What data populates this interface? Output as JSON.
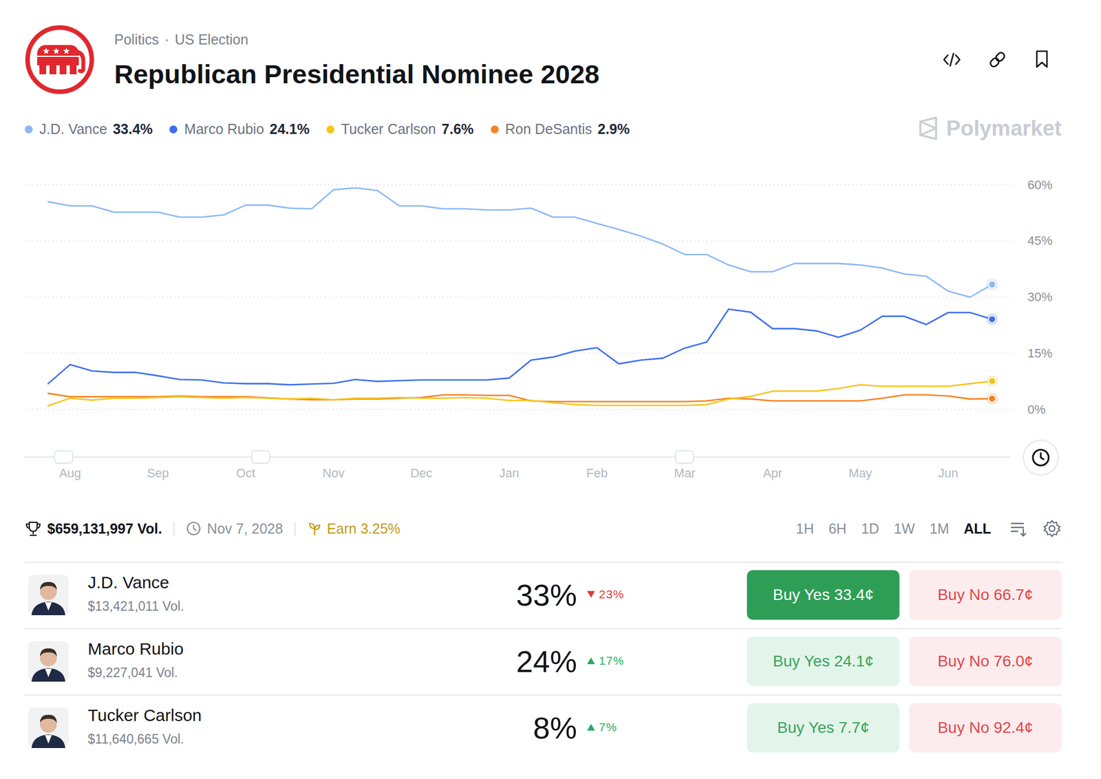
{
  "header": {
    "breadcrumb": [
      "Politics",
      "US Election"
    ],
    "breadcrumb_separator": "·",
    "title": "Republican Presidential Nominee 2028",
    "watermark": "Polymarket"
  },
  "chart_data": {
    "type": "line",
    "categories": [
      null,
      "Aug",
      null,
      null,
      null,
      "Sep",
      null,
      null,
      null,
      "Oct",
      null,
      null,
      null,
      "Nov",
      null,
      null,
      null,
      "Dec",
      null,
      null,
      null,
      "Jan",
      null,
      null,
      null,
      "Feb",
      null,
      null,
      null,
      "Mar",
      null,
      null,
      null,
      "Apr",
      null,
      null,
      null,
      "May",
      null,
      null,
      null,
      "Jun",
      null,
      null
    ],
    "series": [
      {
        "name": "J.D. Vance",
        "color": "#8cb8f5",
        "latest_label": "33.4%",
        "values": [
          55.5,
          54.4,
          54.4,
          52.7,
          52.7,
          52.7,
          51.4,
          51.4,
          52.0,
          54.6,
          54.6,
          53.8,
          53.6,
          58.7,
          59.2,
          58.5,
          54.4,
          54.4,
          53.6,
          53.6,
          53.3,
          53.3,
          53.8,
          51.4,
          51.4,
          49.7,
          48.1,
          46.3,
          44.2,
          41.4,
          41.4,
          38.6,
          36.8,
          36.8,
          39.0,
          39.0,
          39.0,
          38.6,
          37.8,
          36.2,
          35.6,
          31.6,
          30.0,
          33.4
        ]
      },
      {
        "name": "Marco Rubio",
        "color": "#3d6fef",
        "latest_label": "24.1%",
        "values": [
          6.9,
          12.0,
          10.3,
          9.9,
          9.9,
          9.0,
          8.0,
          7.9,
          7.1,
          6.9,
          6.9,
          6.6,
          6.8,
          7.0,
          8.0,
          7.5,
          7.7,
          7.9,
          7.9,
          7.9,
          7.9,
          8.4,
          13.2,
          14.0,
          15.6,
          16.5,
          12.2,
          13.2,
          13.7,
          16.4,
          18.0,
          26.8,
          26.0,
          21.6,
          21.6,
          21.0,
          19.3,
          21.2,
          24.9,
          24.9,
          22.7,
          25.9,
          25.9,
          24.1
        ]
      },
      {
        "name": "Tucker Carlson",
        "color": "#f7c41a",
        "latest_label": "7.6%",
        "values": [
          1.0,
          3.0,
          2.5,
          3.0,
          3.0,
          3.2,
          3.4,
          3.2,
          3.0,
          3.2,
          3.0,
          2.8,
          3.0,
          2.6,
          3.0,
          3.0,
          3.2,
          3.0,
          3.0,
          3.2,
          3.0,
          2.4,
          2.4,
          1.8,
          1.3,
          1.1,
          1.1,
          1.1,
          1.1,
          1.1,
          1.3,
          2.8,
          3.5,
          4.9,
          4.9,
          4.9,
          5.6,
          6.6,
          6.2,
          6.2,
          6.2,
          6.2,
          6.9,
          7.6
        ]
      },
      {
        "name": "Ron DeSantis",
        "color": "#f58220",
        "latest_label": "2.9%",
        "values": [
          4.3,
          3.4,
          3.4,
          3.4,
          3.4,
          3.4,
          3.6,
          3.4,
          3.4,
          3.4,
          3.1,
          2.8,
          2.6,
          2.6,
          2.8,
          2.8,
          3.0,
          3.2,
          3.9,
          3.9,
          3.75,
          3.75,
          2.3,
          2.1,
          2.1,
          2.1,
          2.1,
          2.1,
          2.1,
          2.1,
          2.3,
          3.0,
          2.8,
          2.3,
          2.3,
          2.3,
          2.3,
          2.3,
          3.0,
          3.9,
          3.9,
          3.6,
          2.8,
          2.9
        ]
      }
    ],
    "ylim": [
      0,
      60
    ],
    "yticks": [
      {
        "value": 0,
        "label": "0%"
      },
      {
        "value": 15,
        "label": "15%"
      },
      {
        "value": 30,
        "label": "30%"
      },
      {
        "value": 45,
        "label": "45%"
      },
      {
        "value": 60,
        "label": "60%"
      }
    ],
    "grid": true,
    "legend": "top-left"
  },
  "stats": {
    "volume": "$659,131,997 Vol.",
    "end_date": "Nov 7, 2028",
    "earn": "Earn 3.25%"
  },
  "time_ranges": [
    "1H",
    "6H",
    "1D",
    "1W",
    "1M",
    "ALL"
  ],
  "selected_range": "ALL",
  "outcomes": [
    {
      "name": "J.D. Vance",
      "volume": "$13,421,011 Vol.",
      "chance": "33%",
      "change": "23%",
      "change_direction": "down",
      "buy_yes": "Buy Yes 33.4¢",
      "buy_no": "Buy No 66.7¢"
    },
    {
      "name": "Marco Rubio",
      "volume": "$9,227,041 Vol.",
      "chance": "24%",
      "change": "17%",
      "change_direction": "up",
      "buy_yes": "Buy Yes 24.1¢",
      "buy_no": "Buy No 76.0¢"
    },
    {
      "name": "Tucker Carlson",
      "volume": "$11,640,665 Vol.",
      "chance": "8%",
      "change": "7%",
      "change_direction": "up",
      "buy_yes": "Buy Yes 7.7¢",
      "buy_no": "Buy No 92.4¢"
    }
  ]
}
